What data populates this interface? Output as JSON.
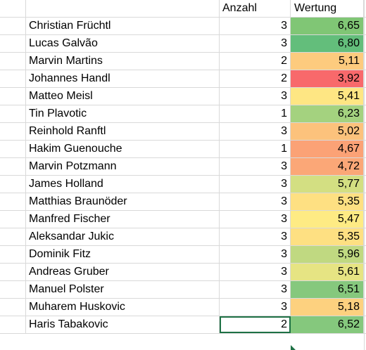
{
  "header": {
    "col_a": "",
    "col_name": "",
    "col_count": "Anzahl",
    "col_rating": "Wertung"
  },
  "rows": [
    {
      "name": "Christian Früchtl",
      "count": "3",
      "rating": "6,65",
      "color": "#80c675"
    },
    {
      "name": "Lucas Galvão",
      "count": "3",
      "rating": "6,80",
      "color": "#63be7b"
    },
    {
      "name": "Marvin Martins",
      "count": "2",
      "rating": "5,11",
      "color": "#fdcb7e"
    },
    {
      "name": "Johannes Handl",
      "count": "2",
      "rating": "3,92",
      "color": "#f8696b"
    },
    {
      "name": "Matteo Meisl",
      "count": "3",
      "rating": "5,41",
      "color": "#fee683"
    },
    {
      "name": "Tin Plavotic",
      "count": "1",
      "rating": "6,23",
      "color": "#a4d27f"
    },
    {
      "name": "Reinhold Ranftl",
      "count": "3",
      "rating": "5,02",
      "color": "#fcc27c"
    },
    {
      "name": "Hakim Guenouche",
      "count": "1",
      "rating": "4,67",
      "color": "#fba276"
    },
    {
      "name": "Marvin Potzmann",
      "count": "3",
      "rating": "4,72",
      "color": "#fba777"
    },
    {
      "name": "James Holland",
      "count": "3",
      "rating": "5,77",
      "color": "#d3df82"
    },
    {
      "name": "Matthias Braunöder",
      "count": "3",
      "rating": "5,35",
      "color": "#fee082"
    },
    {
      "name": "Manfred Fischer",
      "count": "3",
      "rating": "5,47",
      "color": "#feeb84"
    },
    {
      "name": "Aleksandar Jukic",
      "count": "3",
      "rating": "5,35",
      "color": "#fee082"
    },
    {
      "name": "Dominik Fitz",
      "count": "3",
      "rating": "5,96",
      "color": "#c0d981"
    },
    {
      "name": "Andreas Gruber",
      "count": "3",
      "rating": "5,61",
      "color": "#e6e483"
    },
    {
      "name": "Manuel Polster",
      "count": "3",
      "rating": "6,51",
      "color": "#86c87d"
    },
    {
      "name": "Muharem Huskovic",
      "count": "3",
      "rating": "5,18",
      "color": "#fdd17f"
    },
    {
      "name": "Haris Tabakovic",
      "count": "2",
      "rating": "6,52",
      "color": "#85c87d"
    }
  ],
  "selection": {
    "active_row_index": 17,
    "active_column": "Anzahl"
  }
}
